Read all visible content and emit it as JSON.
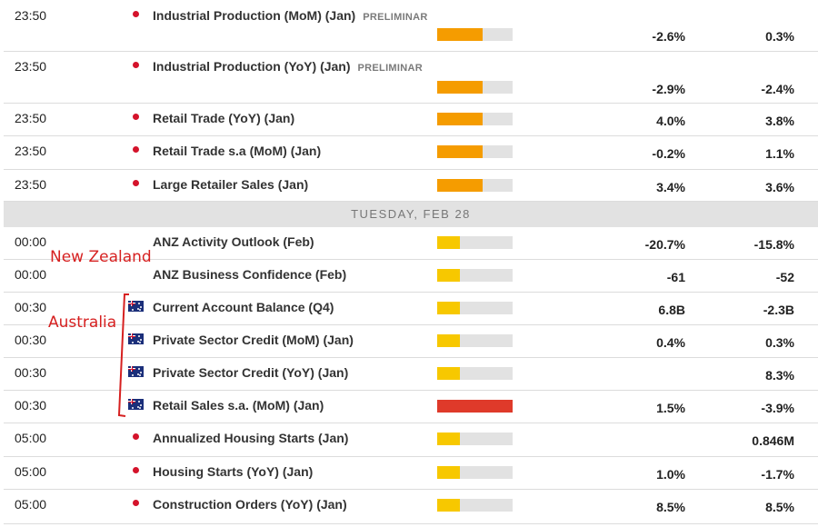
{
  "colors": {
    "low": "#f7c800",
    "medium": "#f59c00",
    "high": "#df3a2a"
  },
  "annotations": {
    "new_zealand": "New Zealand",
    "australia": "Australia"
  },
  "day_header": "TUESDAY, FEB 28",
  "events": [
    {
      "time": "23:50",
      "country": "jp",
      "title": "Industrial Production (MoM) (Jan)",
      "badge": "PRELIMINAR",
      "impact": "medium",
      "impact_level": 0.6,
      "actual": "-2.6%",
      "previous": "0.3%"
    },
    {
      "time": "23:50",
      "country": "jp",
      "title": "Industrial Production (YoY) (Jan)",
      "badge": "PRELIMINAR",
      "impact": "medium",
      "impact_level": 0.6,
      "actual": "-2.9%",
      "previous": "-2.4%"
    },
    {
      "time": "23:50",
      "country": "jp",
      "title": "Retail Trade (YoY) (Jan)",
      "badge": "",
      "impact": "medium",
      "impact_level": 0.6,
      "actual": "4.0%",
      "previous": "3.8%"
    },
    {
      "time": "23:50",
      "country": "jp",
      "title": "Retail Trade s.a (MoM) (Jan)",
      "badge": "",
      "impact": "medium",
      "impact_level": 0.6,
      "actual": "-0.2%",
      "previous": "1.1%"
    },
    {
      "time": "23:50",
      "country": "jp",
      "title": "Large Retailer Sales (Jan)",
      "badge": "",
      "impact": "medium",
      "impact_level": 0.6,
      "actual": "3.4%",
      "previous": "3.6%"
    },
    {
      "time": "00:00",
      "country": "nz",
      "title": "ANZ Activity Outlook (Feb)",
      "badge": "",
      "impact": "low",
      "impact_level": 0.3,
      "actual": "-20.7%",
      "previous": "-15.8%"
    },
    {
      "time": "00:00",
      "country": "nz",
      "title": "ANZ Business Confidence (Feb)",
      "badge": "",
      "impact": "low",
      "impact_level": 0.3,
      "actual": "-61",
      "previous": "-52"
    },
    {
      "time": "00:30",
      "country": "au",
      "title": "Current Account Balance (Q4)",
      "badge": "",
      "impact": "low",
      "impact_level": 0.3,
      "actual": "6.8B",
      "previous": "-2.3B"
    },
    {
      "time": "00:30",
      "country": "au",
      "title": "Private Sector Credit (MoM) (Jan)",
      "badge": "",
      "impact": "low",
      "impact_level": 0.3,
      "actual": "0.4%",
      "previous": "0.3%"
    },
    {
      "time": "00:30",
      "country": "au",
      "title": "Private Sector Credit (YoY) (Jan)",
      "badge": "",
      "impact": "low",
      "impact_level": 0.3,
      "actual": "",
      "previous": "8.3%"
    },
    {
      "time": "00:30",
      "country": "au",
      "title": "Retail Sales s.a. (MoM) (Jan)",
      "badge": "",
      "impact": "high",
      "impact_level": 1.0,
      "actual": "1.5%",
      "previous": "-3.9%"
    },
    {
      "time": "05:00",
      "country": "jp",
      "title": "Annualized Housing Starts (Jan)",
      "badge": "",
      "impact": "low",
      "impact_level": 0.3,
      "actual": "",
      "previous": "0.846M"
    },
    {
      "time": "05:00",
      "country": "jp",
      "title": "Housing Starts (YoY) (Jan)",
      "badge": "",
      "impact": "low",
      "impact_level": 0.3,
      "actual": "1.0%",
      "previous": "-1.7%"
    },
    {
      "time": "05:00",
      "country": "jp",
      "title": "Construction Orders (YoY) (Jan)",
      "badge": "",
      "impact": "low",
      "impact_level": 0.3,
      "actual": "8.5%",
      "previous": "8.5%"
    }
  ]
}
